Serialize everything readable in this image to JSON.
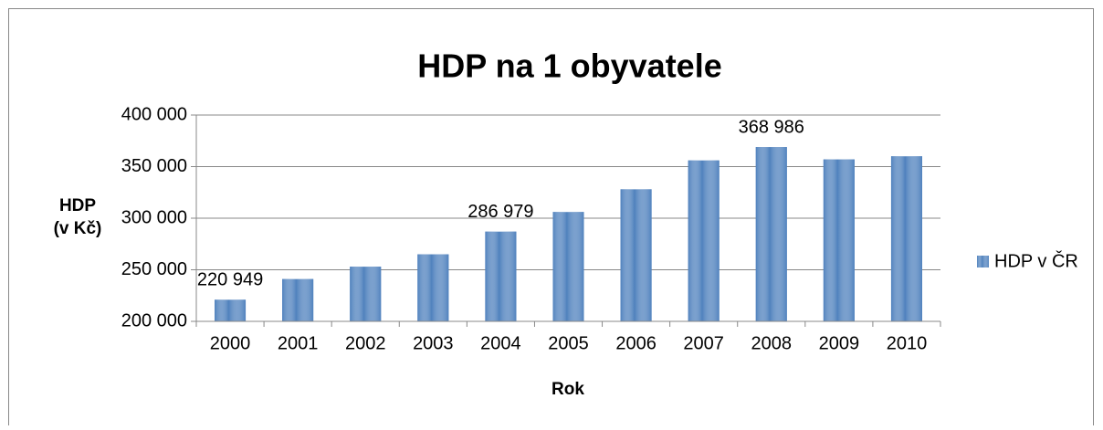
{
  "chart_data": {
    "type": "bar",
    "title": "HDP na 1 obyvatele",
    "x_label": "Rok",
    "y_label": [
      "HDP",
      "(v Kč)"
    ],
    "categories": [
      "2000",
      "2001",
      "2002",
      "2003",
      "2004",
      "2005",
      "2006",
      "2007",
      "2008",
      "2009",
      "2010"
    ],
    "series": [
      {
        "name": "HDP v ČR",
        "color": "#4f81bd",
        "values": [
          220949,
          241000,
          253000,
          265000,
          286979,
          306000,
          328000,
          356000,
          368986,
          357000,
          360000
        ],
        "value_labels": [
          "220 949",
          null,
          null,
          null,
          "286 979",
          null,
          null,
          null,
          "368 986",
          null,
          null
        ]
      }
    ],
    "ylim": [
      200000,
      400000
    ],
    "yticks": [
      {
        "value": 200000,
        "label": "200 000"
      },
      {
        "value": 250000,
        "label": "250 000"
      },
      {
        "value": 300000,
        "label": "300 000"
      },
      {
        "value": 350000,
        "label": "350 000"
      },
      {
        "value": 400000,
        "label": "400 000"
      }
    ],
    "grid": true,
    "legend": "right"
  }
}
